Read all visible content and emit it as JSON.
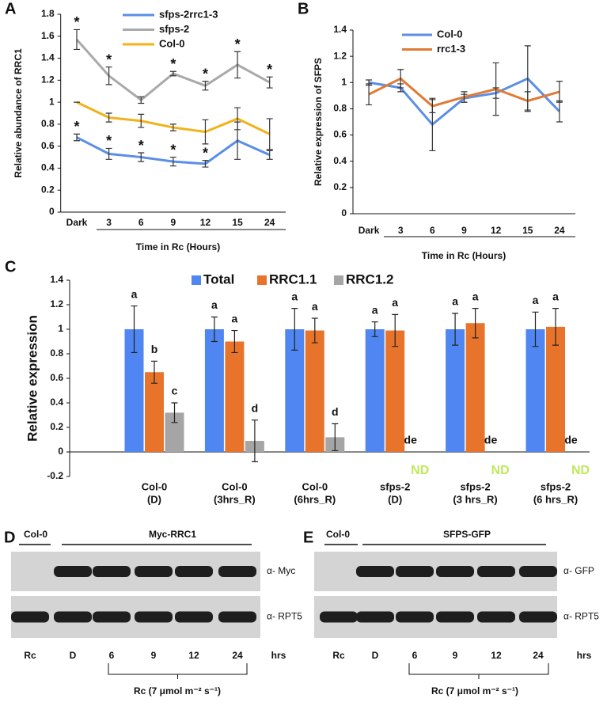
{
  "chart_data": [
    {
      "type": "line",
      "panel": "A",
      "ylabel": "Relative abundance of RRC1",
      "xlabel": "Time in Rc (Hours)",
      "categories": [
        "Dark",
        "3",
        "6",
        "9",
        "12",
        "15",
        "24"
      ],
      "ylim": [
        0,
        1.8
      ],
      "yticks": [
        0,
        0.2,
        0.4,
        0.6,
        0.8,
        1,
        1.2,
        1.4,
        1.6,
        1.8
      ],
      "grid": false,
      "legend": "top",
      "series": [
        {
          "name": "sfps-2rrc1-3",
          "color": "#5b8ee6",
          "values": [
            0.68,
            0.53,
            0.5,
            0.46,
            0.44,
            0.65,
            0.52
          ],
          "errors": [
            0.03,
            0.05,
            0.04,
            0.04,
            0.03,
            0.17,
            0.04
          ],
          "significance": [
            "*",
            "*",
            "*",
            "*",
            "*",
            null,
            null
          ]
        },
        {
          "name": "sfps-2",
          "color": "#a8aaa9",
          "values": [
            1.57,
            1.24,
            1.02,
            1.26,
            1.15,
            1.34,
            1.18
          ],
          "errors": [
            0.09,
            0.08,
            0.03,
            0.02,
            0.04,
            0.12,
            0.05
          ],
          "significance": [
            "*",
            "*",
            null,
            "*",
            "*",
            "*",
            "*"
          ]
        },
        {
          "name": "Col-0",
          "color": "#f2b21a",
          "values": [
            1,
            0.86,
            0.83,
            0.77,
            0.73,
            0.85,
            0.71
          ],
          "errors": [
            0,
            0.04,
            0.06,
            0.03,
            0.11,
            0.1,
            0.14
          ]
        }
      ]
    },
    {
      "type": "line",
      "panel": "B",
      "ylabel": "Relative expression of SFPS",
      "xlabel": "Time in Rc (Hours)",
      "categories": [
        "Dark",
        "3",
        "6",
        "9",
        "12",
        "15",
        "24"
      ],
      "ylim": [
        0,
        1.4
      ],
      "yticks": [
        0,
        0.2,
        0.4,
        0.6,
        0.8,
        1,
        1.2,
        1.4
      ],
      "grid": false,
      "legend": "top",
      "series": [
        {
          "name": "Col-0",
          "color": "#5b8ee6",
          "values": [
            1,
            0.96,
            0.68,
            0.88,
            0.92,
            1.03,
            0.78
          ],
          "errors": [
            0.02,
            0.03,
            0.2,
            0.03,
            0.04,
            0.25,
            0.08
          ]
        },
        {
          "name": "rrc1-3",
          "color": "#e07a35",
          "values": [
            0.91,
            1.03,
            0.82,
            0.89,
            0.95,
            0.86,
            0.93
          ],
          "errors": [
            0.08,
            0.07,
            0.05,
            0.04,
            0.2,
            0.07,
            0.08
          ]
        }
      ]
    },
    {
      "type": "bar",
      "panel": "C",
      "ylabel": "Relative expression",
      "categories": [
        [
          "Col-0",
          "(D)"
        ],
        [
          "Col-0",
          "(3hrs_R)"
        ],
        [
          "Col-0",
          "(6hrs_R)"
        ],
        [
          "sfps-2",
          "(D)"
        ],
        [
          "sfps-2",
          "(3 hrs_R)"
        ],
        [
          "sfps-2",
          "(6 hrs_R)"
        ]
      ],
      "ylim": [
        -0.2,
        1.4
      ],
      "yticks": [
        -0.2,
        0,
        0.2,
        0.4,
        0.6,
        0.8,
        1,
        1.2,
        1.4
      ],
      "grid": false,
      "legend": "top",
      "series": [
        {
          "name": "Total",
          "color": "#4f86f2",
          "values": [
            1,
            1,
            1,
            1,
            1,
            1
          ],
          "errors": [
            0.19,
            0.1,
            0.17,
            0.06,
            0.13,
            0.14
          ],
          "significance": [
            "a",
            "a",
            "a",
            "a",
            "a",
            "a"
          ]
        },
        {
          "name": "RRC1.1",
          "color": "#e8742c",
          "values": [
            0.65,
            0.9,
            0.99,
            0.99,
            1.05,
            1.02
          ],
          "errors": [
            0.09,
            0.09,
            0.1,
            0.13,
            0.12,
            0.15
          ],
          "significance": [
            "b",
            "a",
            "a",
            "a",
            "a",
            "a"
          ]
        },
        {
          "name": "RRC1.2",
          "color": "#a5a5a5",
          "values": [
            0.32,
            0.09,
            0.12,
            null,
            null,
            null
          ],
          "errors": [
            0.08,
            0.17,
            0.11,
            null,
            null,
            null
          ],
          "significance": [
            "c",
            "d",
            "d",
            "de",
            "de",
            "de"
          ],
          "value_labels": [
            null,
            null,
            null,
            "ND",
            "ND",
            "ND"
          ],
          "value_label_color": "#bfe85c"
        }
      ]
    }
  ],
  "blots": [
    {
      "panel": "D",
      "control": "Col-0",
      "construct": "Myc-RRC1",
      "antibodies": [
        "α- Myc",
        "α- RPT5"
      ],
      "lanes": [
        "Rc",
        "D",
        "6",
        "9",
        "12",
        "24"
      ],
      "unit": "hrs",
      "treatment": "Rc (7 μmol m⁻² s⁻¹)"
    },
    {
      "panel": "E",
      "control": "Col-0",
      "construct": "SFPS-GFP",
      "antibodies": [
        "α- GFP",
        "α- RPT5"
      ],
      "lanes": [
        "Rc",
        "D",
        "6",
        "9",
        "12",
        "24"
      ],
      "unit": "hrs",
      "treatment": "Rc (7 μmol m⁻² s⁻¹)"
    }
  ]
}
